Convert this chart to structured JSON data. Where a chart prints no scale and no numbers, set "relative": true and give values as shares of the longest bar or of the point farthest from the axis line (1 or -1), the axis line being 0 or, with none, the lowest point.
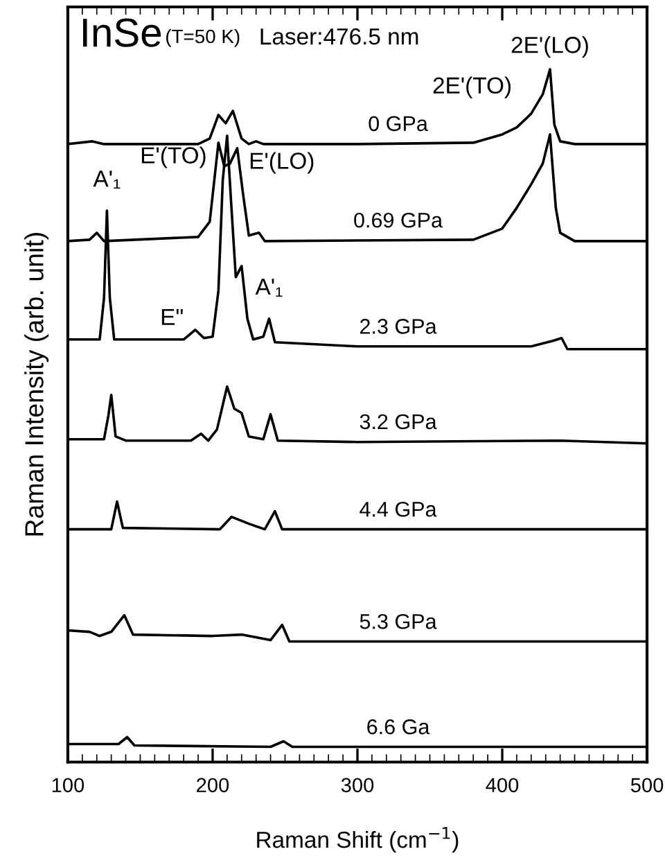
{
  "chart_data": {
    "type": "line",
    "title": "InSe",
    "subtitle": "(T=50 K)",
    "xlabel": "Raman Shift (cm$^{−1}$)",
    "ylabel": "Raman Intensity (arb. unit)",
    "relative": true,
    "xlim": [
      100,
      500
    ],
    "xticks": [
      100,
      200,
      300,
      400,
      500
    ],
    "grid": false,
    "legend": false,
    "marker": "none",
    "line_style": "solid",
    "annotations": [
      "Laser:476.5 nm",
      {
        "text": "2E'(LO)",
        "x": 433,
        "y": 1.0
      },
      {
        "text": "2E'(TO)",
        "x": 420,
        "y": 0.936
      },
      {
        "text": "E'(TO)",
        "x": 204,
        "y": 0.894
      },
      {
        "text": "E'(LO)",
        "x": 217,
        "y": 0.886
      },
      {
        "text": "A'₁",
        "x": 127,
        "y": 0.796
      },
      {
        "text": "E\"",
        "x": 188,
        "y": 0.624
      },
      {
        "text": "A'₁",
        "x": 239,
        "y": 0.64
      }
    ],
    "series": [
      {
        "name": "0 GPa",
        "color": "#000000",
        "x": [
          100,
          117,
          125,
          190,
          198,
          204,
          209,
          214,
          220,
          225,
          230,
          235,
          300,
          380,
          400,
          410,
          420,
          428,
          433,
          436,
          440,
          450,
          500
        ],
        "values": [
          0.892,
          0.896,
          0.892,
          0.892,
          0.9,
          0.934,
          0.922,
          0.94,
          0.9,
          0.892,
          0.896,
          0.892,
          0.892,
          0.894,
          0.906,
          0.916,
          0.936,
          0.964,
          1.0,
          0.92,
          0.896,
          0.892,
          0.892
        ]
      },
      {
        "name": "0.69 GPa",
        "color": "#000000",
        "x": [
          100,
          115,
          120,
          125,
          190,
          198,
          204,
          208,
          212,
          217,
          221,
          225,
          232,
          236,
          380,
          400,
          410,
          420,
          428,
          433,
          437,
          440,
          450,
          500
        ],
        "values": [
          0.752,
          0.754,
          0.764,
          0.752,
          0.758,
          0.78,
          0.894,
          0.86,
          0.864,
          0.886,
          0.82,
          0.76,
          0.764,
          0.752,
          0.754,
          0.77,
          0.8,
          0.834,
          0.864,
          0.906,
          0.8,
          0.764,
          0.752,
          0.752
        ]
      },
      {
        "name": "2.3 GPa",
        "color": "#000000",
        "x": [
          100,
          122,
          125,
          127,
          129,
          132,
          180,
          188,
          194,
          200,
          204,
          207,
          210,
          213,
          216,
          220,
          224,
          228,
          235,
          239,
          243,
          300,
          420,
          435,
          441,
          445,
          500
        ],
        "values": [
          0.61,
          0.61,
          0.67,
          0.796,
          0.67,
          0.61,
          0.61,
          0.624,
          0.612,
          0.614,
          0.68,
          0.84,
          0.904,
          0.8,
          0.7,
          0.716,
          0.64,
          0.61,
          0.614,
          0.64,
          0.606,
          0.6,
          0.6,
          0.608,
          0.612,
          0.596,
          0.596
        ]
      },
      {
        "name": "3.2 GPa",
        "color": "#000000",
        "x": [
          100,
          125,
          128,
          130,
          133,
          140,
          185,
          192,
          197,
          203,
          210,
          215,
          220,
          225,
          235,
          240,
          245,
          300,
          440,
          500
        ],
        "values": [
          0.466,
          0.466,
          0.5,
          0.53,
          0.47,
          0.464,
          0.464,
          0.474,
          0.464,
          0.48,
          0.542,
          0.51,
          0.504,
          0.47,
          0.466,
          0.502,
          0.464,
          0.462,
          0.464,
          0.46
        ]
      },
      {
        "name": "4.4 GPa",
        "color": "#000000",
        "x": [
          100,
          130,
          134,
          138,
          205,
          213,
          225,
          236,
          243,
          248,
          500
        ],
        "values": [
          0.336,
          0.336,
          0.376,
          0.338,
          0.336,
          0.354,
          0.344,
          0.336,
          0.362,
          0.336,
          0.336
        ]
      },
      {
        "name": "5.3 GPa",
        "color": "#000000",
        "x": [
          100,
          115,
          122,
          130,
          139,
          145,
          200,
          220,
          240,
          248,
          253,
          500
        ],
        "values": [
          0.19,
          0.188,
          0.182,
          0.188,
          0.212,
          0.184,
          0.182,
          0.184,
          0.176,
          0.198,
          0.174,
          0.174
        ]
      },
      {
        "name": "6.6 Ga",
        "color": "#000000",
        "x": [
          100,
          135,
          141,
          146,
          240,
          249,
          255,
          500
        ],
        "values": [
          0.026,
          0.026,
          0.036,
          0.024,
          0.022,
          0.03,
          0.022,
          0.022
        ]
      }
    ]
  }
}
